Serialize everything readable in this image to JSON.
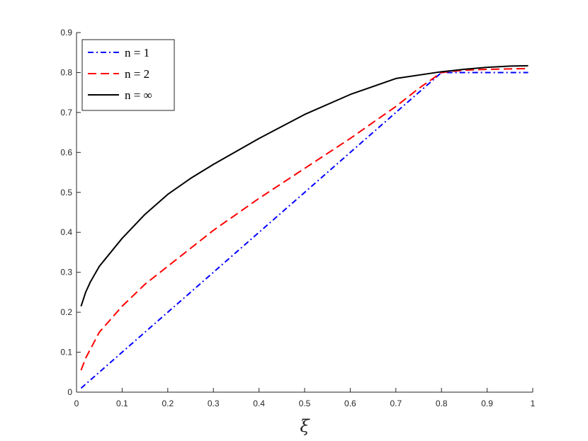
{
  "chart_data": {
    "type": "line",
    "title": "",
    "xlabel": "ξ",
    "ylabel": "",
    "xlim": [
      0,
      1
    ],
    "ylim": [
      0,
      0.9
    ],
    "xticks": [
      "0",
      "0.1",
      "0.2",
      "0.3",
      "0.4",
      "0.5",
      "0.6",
      "0.7",
      "0.8",
      "0.9",
      "1"
    ],
    "yticks": [
      "0",
      "0.1",
      "0.2",
      "0.3",
      "0.4",
      "0.5",
      "0.6",
      "0.7",
      "0.8",
      "0.9"
    ],
    "grid": false,
    "legend_position": "top-left",
    "series": [
      {
        "name": "n = 1",
        "color": "#0000ff",
        "line_style": "dash-dot",
        "x": [
          0.01,
          0.8,
          0.99
        ],
        "y": [
          0.01,
          0.8,
          0.8
        ]
      },
      {
        "name": "n = 2",
        "color": "#ff0000",
        "line_style": "dashed",
        "x": [
          0.01,
          0.02,
          0.05,
          0.1,
          0.15,
          0.2,
          0.3,
          0.4,
          0.5,
          0.6,
          0.7,
          0.75,
          0.8,
          0.85,
          0.9,
          0.95,
          0.99
        ],
        "y": [
          0.055,
          0.085,
          0.15,
          0.215,
          0.27,
          0.315,
          0.405,
          0.485,
          0.56,
          0.635,
          0.715,
          0.76,
          0.8,
          0.806,
          0.808,
          0.809,
          0.81
        ]
      },
      {
        "name": "n = ∞",
        "color": "#000000",
        "line_style": "solid",
        "x": [
          0.01,
          0.02,
          0.03,
          0.05,
          0.075,
          0.1,
          0.15,
          0.2,
          0.25,
          0.3,
          0.4,
          0.5,
          0.6,
          0.7,
          0.8,
          0.85,
          0.9,
          0.95,
          0.99
        ],
        "y": [
          0.215,
          0.25,
          0.275,
          0.315,
          0.35,
          0.385,
          0.445,
          0.495,
          0.535,
          0.57,
          0.635,
          0.695,
          0.745,
          0.785,
          0.802,
          0.808,
          0.813,
          0.816,
          0.817
        ]
      }
    ]
  }
}
